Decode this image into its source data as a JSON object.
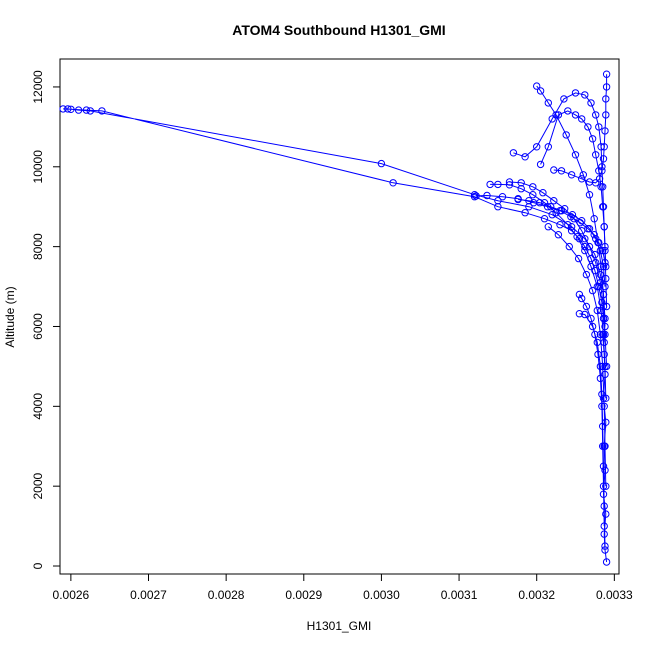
{
  "chart_data": {
    "type": "scatter",
    "title": "ATOM4 Southbound H1301_GMI",
    "xlabel": "H1301_GMI",
    "ylabel": "Altitude (m)",
    "xlim": [
      0.002586,
      0.003306
    ],
    "ylim": [
      -200,
      12700
    ],
    "x_ticks": [
      0.0026,
      0.0027,
      0.0028,
      0.0029,
      0.003,
      0.0031,
      0.0032,
      0.0033
    ],
    "x_tick_labels": [
      "0.0026",
      "0.0027",
      "0.0028",
      "0.0029",
      "0.0030",
      "0.0031",
      "0.0032",
      "0.0033"
    ],
    "y_ticks": [
      0,
      2000,
      4000,
      6000,
      8000,
      10000,
      12000
    ],
    "y_tick_labels": [
      "0",
      "2000",
      "4000",
      "6000",
      "8000",
      "10000",
      "12000"
    ],
    "marker": "open-circle",
    "lines_connect_points": true,
    "grid": false,
    "series_color": "#0000ff",
    "series": [
      {
        "name": "",
        "x": [
          0.00329,
          0.003288,
          0.003287,
          0.003289,
          0.003286,
          0.003288,
          0.003287,
          0.003289,
          0.003286,
          0.003288,
          0.003287,
          0.003285,
          0.003286,
          0.003284,
          0.00328,
          0.003275,
          0.00327,
          0.003262,
          0.003255,
          0.003245,
          0.00323,
          0.00321,
          0.003185,
          0.00315,
          0.00312,
          0.003015,
          0.00264,
          0.00262,
          0.0026,
          0.00259,
          0.002596,
          0.00261,
          0.002625,
          0.003,
          0.00312,
          0.00315,
          0.00319,
          0.00322,
          0.003245,
          0.003262,
          0.003275,
          0.003282,
          0.003286,
          0.003288,
          0.003287
        ],
        "y": [
          100,
          400,
          800,
          1300,
          1800,
          2400,
          3000,
          3600,
          4200,
          4800,
          5300,
          5800,
          6200,
          6600,
          7000,
          7400,
          7700,
          8000,
          8200,
          8400,
          8550,
          8700,
          8850,
          9000,
          9250,
          9600,
          11400,
          11420,
          11440,
          11450,
          11450,
          11420,
          11400,
          10080,
          9300,
          9150,
          9000,
          8800,
          8500,
          8200,
          7800,
          7300,
          6800,
          6200,
          5600
        ]
      },
      {
        "name": "",
        "x": [
          0.003289,
          0.003288,
          0.003286,
          0.003283,
          0.003278,
          0.00327,
          0.003262,
          0.003252,
          0.00324,
          0.003225,
          0.00321,
          0.003195,
          0.00318,
          0.003165,
          0.00315,
          0.00314
        ],
        "y": [
          4200,
          5000,
          5800,
          6400,
          7000,
          7500,
          7900,
          8250,
          8550,
          8850,
          9100,
          9300,
          9450,
          9550,
          9560,
          9560
        ]
      },
      {
        "name": "",
        "x": [
          0.00329,
          0.003288,
          0.003286,
          0.003282,
          0.003276,
          0.003268,
          0.003258,
          0.003248,
          0.003236,
          0.003222,
          0.003208,
          0.003195,
          0.00318,
          0.003165
        ],
        "y": [
          5000,
          5800,
          6500,
          7100,
          7600,
          8000,
          8400,
          8700,
          8950,
          9150,
          9350,
          9500,
          9600,
          9620
        ]
      },
      {
        "name": "",
        "x": [
          0.003288,
          0.003286,
          0.003283,
          0.003279,
          0.003274,
          0.003268,
          0.00326,
          0.00325,
          0.003238,
          0.003225,
          0.003215,
          0.003205,
          0.0032
        ],
        "y": [
          6000,
          6800,
          7500,
          8100,
          8700,
          9300,
          9800,
          10300,
          10800,
          11300,
          11600,
          11900,
          12020
        ]
      },
      {
        "name": "",
        "x": [
          0.00329,
          0.003289,
          0.003288,
          0.003287,
          0.003285,
          0.003283,
          0.00328,
          0.003276,
          0.003272,
          0.003266,
          0.003258,
          0.00325,
          0.00324,
          0.003228,
          0.003215,
          0.003205
        ],
        "y": [
          6500,
          7200,
          7900,
          8500,
          9000,
          9500,
          9900,
          10300,
          10700,
          11000,
          11200,
          11300,
          11400,
          11300,
          10500,
          10060
        ]
      },
      {
        "name": "",
        "x": [
          0.00329,
          0.00329,
          0.003289,
          0.003289,
          0.003288,
          0.003287,
          0.003286,
          0.003284,
          0.003281,
          0.003276,
          0.003268,
          0.003258,
          0.003245,
          0.003232,
          0.003222
        ],
        "y": [
          12320,
          12000,
          11700,
          11300,
          10900,
          10500,
          10200,
          9900,
          9700,
          9600,
          9620,
          9700,
          9800,
          9900,
          9920
        ]
      },
      {
        "name": "",
        "x": [
          0.003289,
          0.003288,
          0.003287,
          0.003286,
          0.003285,
          0.003284,
          0.003283,
          0.00328,
          0.003276,
          0.00327,
          0.003262,
          0.00325,
          0.003235,
          0.00322,
          0.0032,
          0.003185,
          0.00317
        ],
        "y": [
          7500,
          8000,
          8500,
          9000,
          9500,
          10000,
          10500,
          11000,
          11300,
          11600,
          11800,
          11850,
          11700,
          11200,
          10500,
          10250,
          10350
        ]
      },
      {
        "name": "",
        "x": [
          0.003288,
          0.003285,
          0.00328,
          0.003274,
          0.003266,
          0.003256,
          0.003244,
          0.00323,
          0.003214,
          0.003196,
          0.003176,
          0.003156,
          0.003136,
          0.003122
        ],
        "y": [
          7600,
          7900,
          8100,
          8300,
          8450,
          8600,
          8750,
          8900,
          9000,
          9100,
          9200,
          9250,
          9280,
          9270
        ]
      },
      {
        "name": "",
        "x": [
          0.003288,
          0.003286,
          0.003282,
          0.003276,
          0.003268,
          0.003258,
          0.003246,
          0.003232,
          0.003218,
          0.003204,
          0.00319,
          0.003176
        ],
        "y": [
          7000,
          7500,
          7900,
          8200,
          8450,
          8650,
          8800,
          8900,
          9000,
          9100,
          9150,
          9180
        ]
      },
      {
        "name": "",
        "x": [
          0.003289,
          0.003288,
          0.003287,
          0.003285,
          0.003282,
          0.003278,
          0.003272,
          0.003264,
          0.003254,
          0.003242,
          0.003228,
          0.003215
        ],
        "y": [
          2000,
          3000,
          4000,
          5000,
          5800,
          6400,
          6900,
          7300,
          7700,
          8000,
          8300,
          8500
        ]
      },
      {
        "name": "",
        "x": [
          0.003287,
          0.003286,
          0.003285,
          0.003284,
          0.003282,
          0.003279,
          0.003275,
          0.00327,
          0.003264,
          0.003258,
          0.003255
        ],
        "y": [
          1000,
          2000,
          3000,
          4000,
          4700,
          5300,
          5800,
          6200,
          6500,
          6700,
          6800
        ]
      },
      {
        "name": "",
        "x": [
          0.003288,
          0.003287,
          0.003286,
          0.003285,
          0.003284,
          0.003282,
          0.003278,
          0.003272,
          0.003262,
          0.003255
        ],
        "y": [
          500,
          1500,
          2500,
          3500,
          4300,
          5000,
          5600,
          6000,
          6300,
          6320
        ]
      }
    ]
  }
}
